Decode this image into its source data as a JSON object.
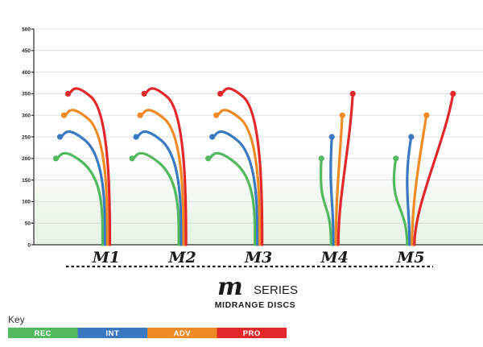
{
  "chart_data": {
    "type": "line",
    "y_ticks": [
      "500",
      "450",
      "400",
      "350",
      "300",
      "250",
      "200",
      "150",
      "100",
      "50",
      "0"
    ],
    "ylim": [
      0,
      500
    ],
    "grid": true,
    "categories": [
      "M1",
      "M2",
      "M3",
      "M4",
      "M5"
    ],
    "highlighted_category": "M4",
    "series": [
      {
        "name": "REC",
        "color": "#52b95f",
        "apex": [
          200,
          200,
          200,
          200,
          200
        ]
      },
      {
        "name": "INT",
        "color": "#3a78c2",
        "apex": [
          250,
          250,
          250,
          250,
          250
        ]
      },
      {
        "name": "ADV",
        "color": "#f08a24",
        "apex": [
          300,
          300,
          300,
          300,
          300
        ]
      },
      {
        "name": "PRO",
        "color": "#e3282b",
        "apex": [
          350,
          350,
          350,
          350,
          350
        ]
      }
    ],
    "flight_shape": [
      "hook",
      "hook",
      "hook",
      "straight",
      "turn"
    ],
    "series_title": "SERIES",
    "subtitle": "MIDRANGE DISCS"
  },
  "key": {
    "title": "Key",
    "items": [
      {
        "label": "REC",
        "color": "#52b95f"
      },
      {
        "label": "INT",
        "color": "#3a78c2"
      },
      {
        "label": "ADV",
        "color": "#f08a24"
      },
      {
        "label": "PRO",
        "color": "#e3282b"
      }
    ]
  },
  "colors": {
    "axis": "#2a2a2a",
    "grid": "#d7d7d7",
    "label_dark": "#1a1a1a",
    "label_highlight": "#8cc63f",
    "plot_fade": "#e6f3e3"
  }
}
